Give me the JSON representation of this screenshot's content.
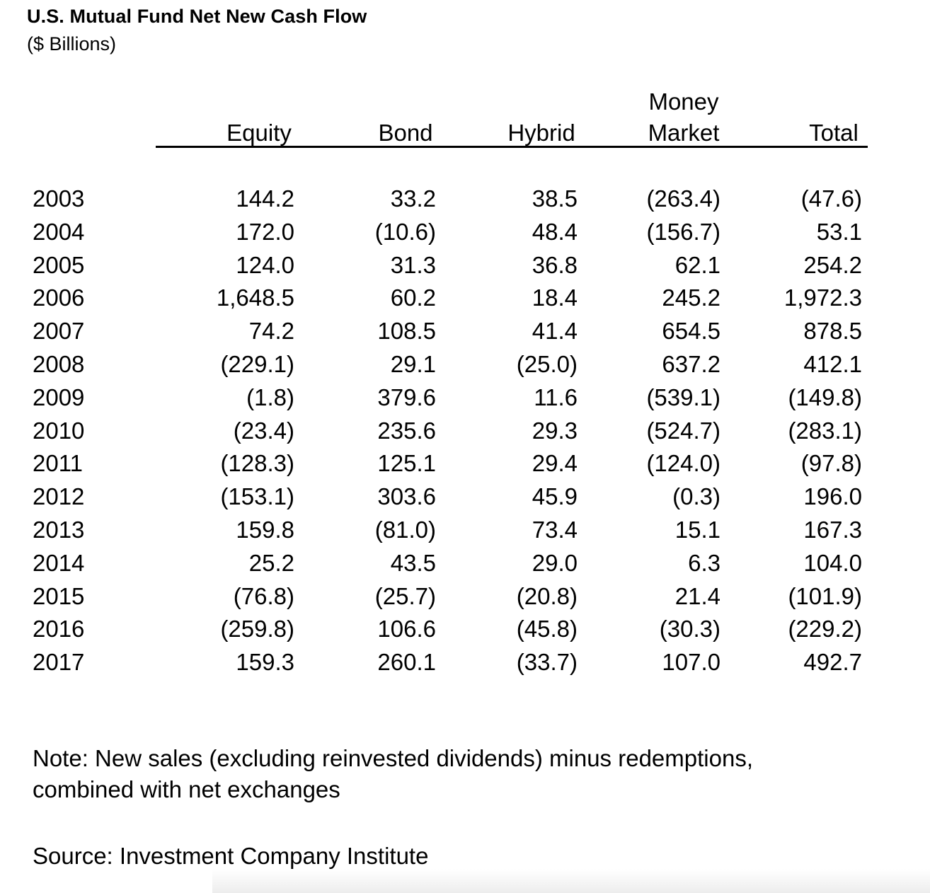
{
  "title": "U.S. Mutual Fund Net New Cash Flow",
  "subtitle": "($ Billions)",
  "columns": {
    "equity": "Equity",
    "bond": "Bond",
    "hybrid": "Hybrid",
    "money_market_line1": "Money",
    "money_market_line2": "Market",
    "total": "Total"
  },
  "rows": [
    {
      "year": "2003",
      "equity": "144.2",
      "bond": "33.2",
      "hybrid": "38.5",
      "money_market": "(263.4)",
      "total": "(47.6)"
    },
    {
      "year": "2004",
      "equity": "172.0",
      "bond": "(10.6)",
      "hybrid": "48.4",
      "money_market": "(156.7)",
      "total": "53.1"
    },
    {
      "year": "2005",
      "equity": "124.0",
      "bond": "31.3",
      "hybrid": "36.8",
      "money_market": "62.1",
      "total": "254.2"
    },
    {
      "year": "2006",
      "equity": "1,648.5",
      "bond": "60.2",
      "hybrid": "18.4",
      "money_market": "245.2",
      "total": "1,972.3"
    },
    {
      "year": "2007",
      "equity": "74.2",
      "bond": "108.5",
      "hybrid": "41.4",
      "money_market": "654.5",
      "total": "878.5"
    },
    {
      "year": "2008",
      "equity": "(229.1)",
      "bond": "29.1",
      "hybrid": "(25.0)",
      "money_market": "637.2",
      "total": "412.1"
    },
    {
      "year": "2009",
      "equity": "(1.8)",
      "bond": "379.6",
      "hybrid": "11.6",
      "money_market": "(539.1)",
      "total": "(149.8)"
    },
    {
      "year": "2010",
      "equity": "(23.4)",
      "bond": "235.6",
      "hybrid": "29.3",
      "money_market": "(524.7)",
      "total": "(283.1)"
    },
    {
      "year": "2011",
      "equity": "(128.3)",
      "bond": "125.1",
      "hybrid": "29.4",
      "money_market": "(124.0)",
      "total": "(97.8)"
    },
    {
      "year": "2012",
      "equity": "(153.1)",
      "bond": "303.6",
      "hybrid": "45.9",
      "money_market": "(0.3)",
      "total": "196.0"
    },
    {
      "year": "2013",
      "equity": "159.8",
      "bond": "(81.0)",
      "hybrid": "73.4",
      "money_market": "15.1",
      "total": "167.3"
    },
    {
      "year": "2014",
      "equity": "25.2",
      "bond": "43.5",
      "hybrid": "29.0",
      "money_market": "6.3",
      "total": "104.0"
    },
    {
      "year": "2015",
      "equity": "(76.8)",
      "bond": "(25.7)",
      "hybrid": "(20.8)",
      "money_market": "21.4",
      "total": "(101.9)"
    },
    {
      "year": "2016",
      "equity": "(259.8)",
      "bond": "106.6",
      "hybrid": "(45.8)",
      "money_market": "(30.3)",
      "total": "(229.2)"
    },
    {
      "year": "2017",
      "equity": "159.3",
      "bond": "260.1",
      "hybrid": "(33.7)",
      "money_market": "107.0",
      "total": "492.7"
    }
  ],
  "note": "Note: New sales (excluding reinvested dividends) minus redemptions, combined with net exchanges",
  "source": "Source: Investment Company Institute"
}
